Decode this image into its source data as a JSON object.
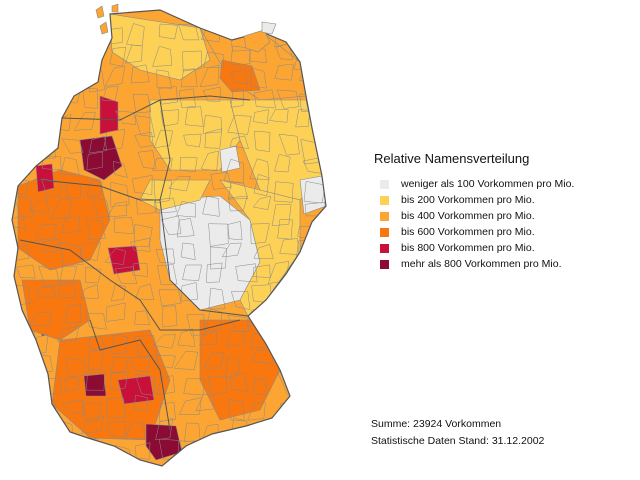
{
  "legend": {
    "title": "Relative Namensverteilung",
    "items": [
      {
        "label": "weniger als 100 Vorkommen pro Mio.",
        "color": "#ebebeb"
      },
      {
        "label": "bis 200 Vorkommen pro Mio.",
        "color": "#fdd155"
      },
      {
        "label": "bis 400 Vorkommen pro Mio.",
        "color": "#fca532"
      },
      {
        "label": "bis 600 Vorkommen pro Mio.",
        "color": "#f8780f"
      },
      {
        "label": "bis 800 Vorkommen pro Mio.",
        "color": "#c9103a"
      },
      {
        "label": "mehr als 800 Vorkommen pro Mio.",
        "color": "#8c0b34"
      }
    ]
  },
  "footer": {
    "summe": "Summe: 23924 Vorkommen",
    "stand": "Statistische Daten Stand: 31.12.2002"
  },
  "map": {
    "border_color": "#8a8a8a",
    "state_border_color": "#555555"
  }
}
